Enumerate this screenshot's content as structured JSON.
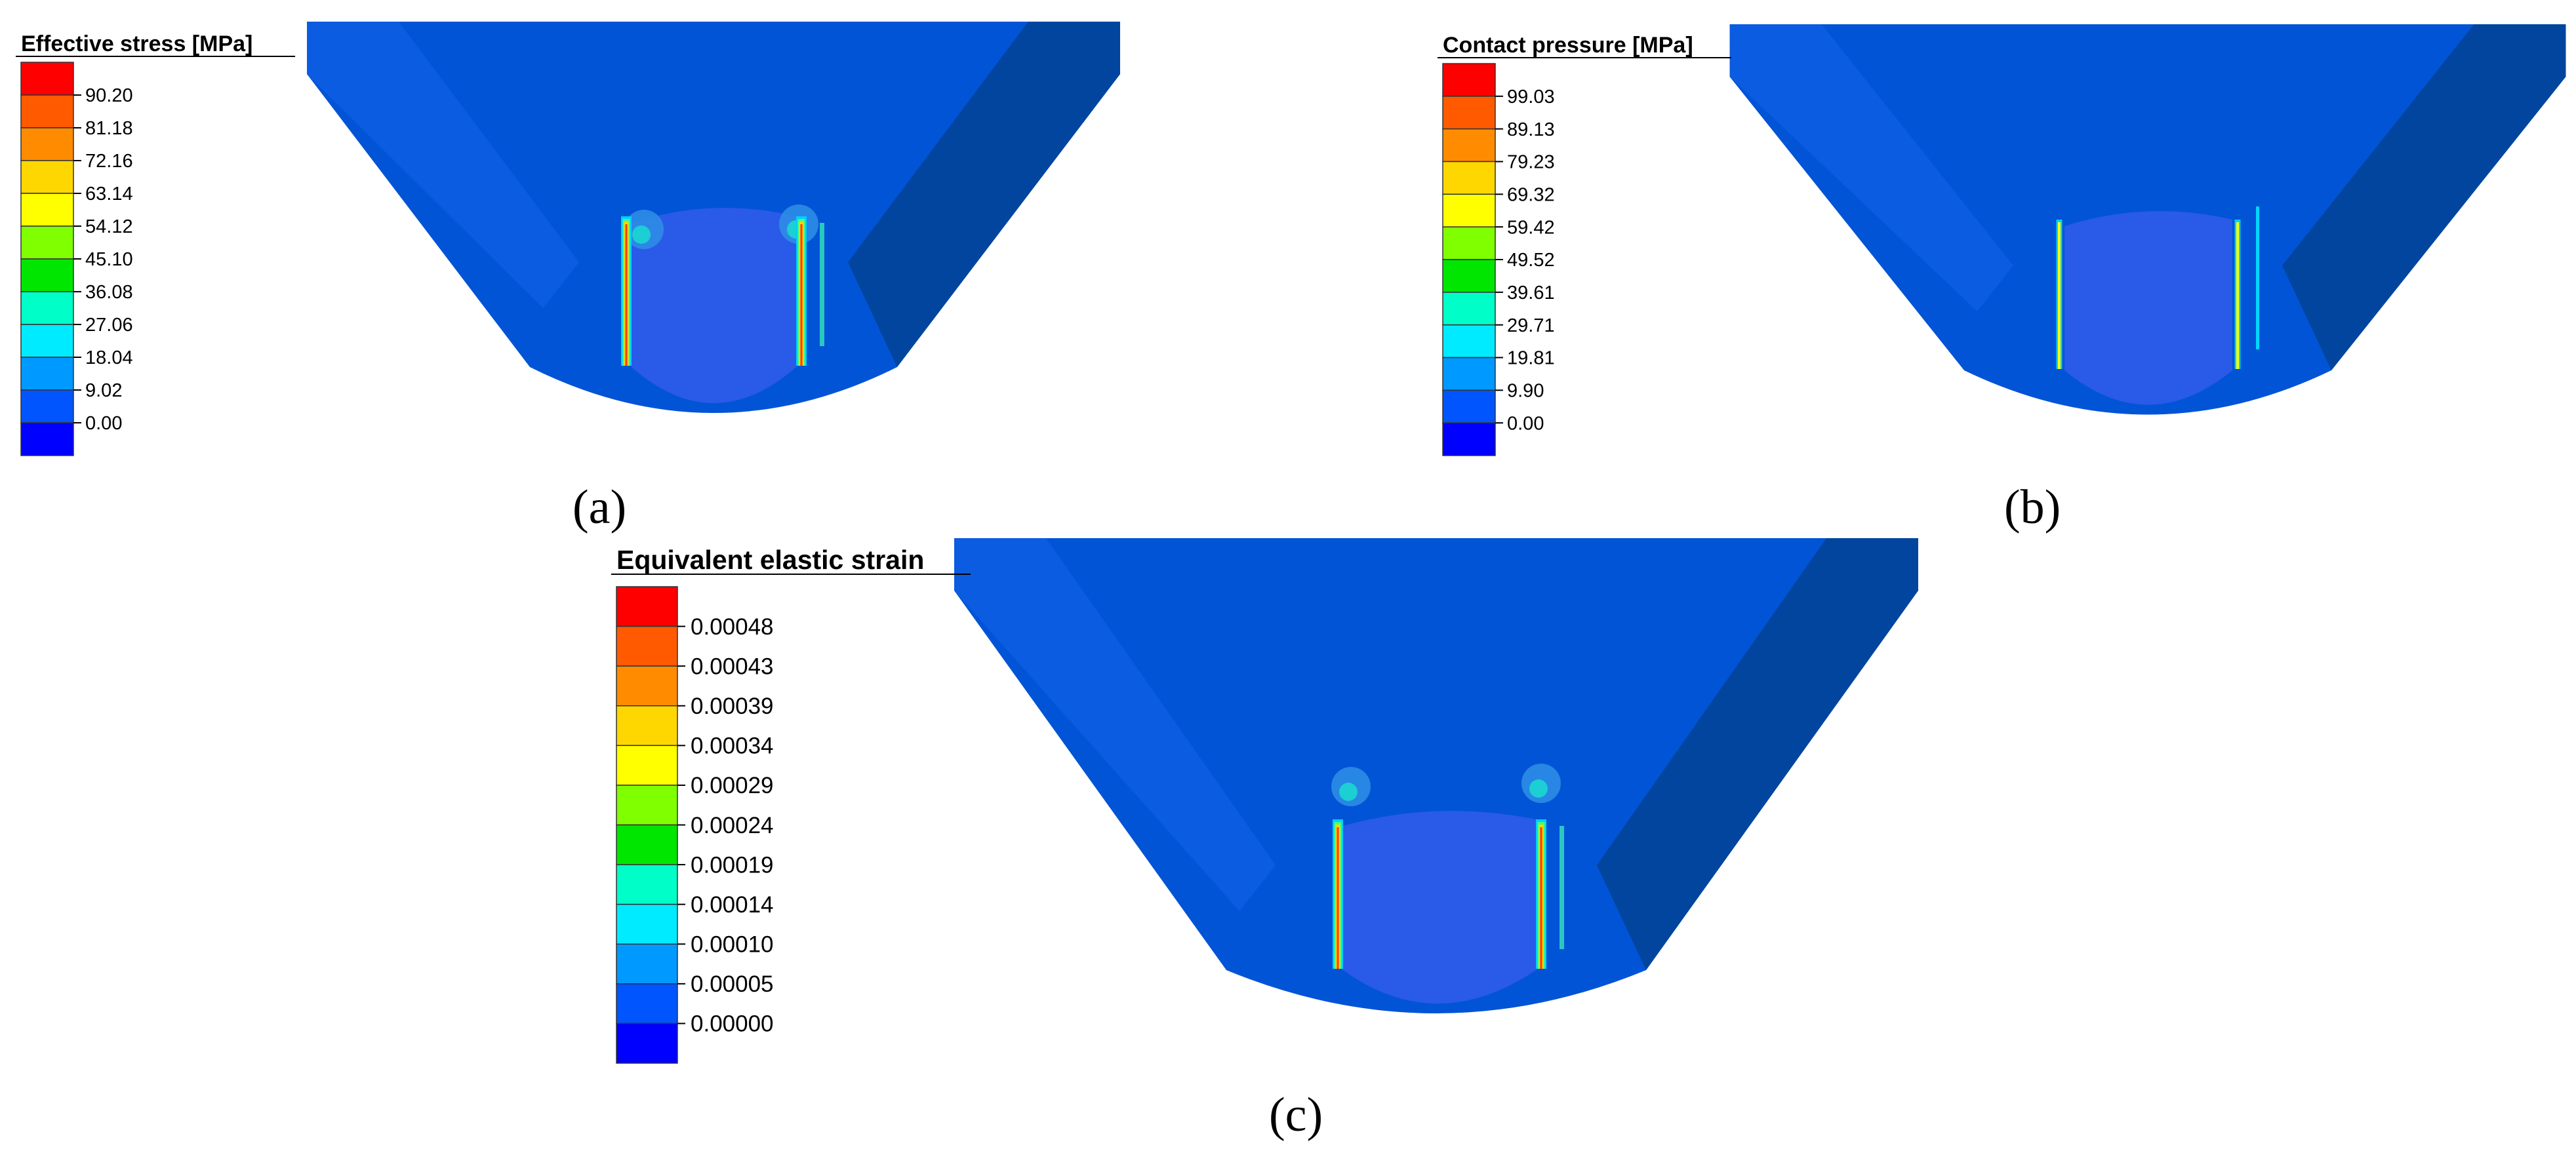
{
  "figure": {
    "panels": [
      {
        "id": "a",
        "label": "(a)",
        "legend": {
          "title": "Effective stress [MPa]",
          "ticks": [
            "90.20",
            "81.18",
            "72.16",
            "63.14",
            "54.12",
            "45.10",
            "36.08",
            "27.06",
            "18.04",
            "9.02",
            "0.00"
          ]
        }
      },
      {
        "id": "b",
        "label": "(b)",
        "legend": {
          "title": "Contact pressure [MPa]",
          "ticks": [
            "99.03",
            "89.13",
            "79.23",
            "69.32",
            "59.42",
            "49.52",
            "39.61",
            "29.71",
            "19.81",
            "9.90",
            "0.00"
          ]
        }
      },
      {
        "id": "c",
        "label": "(c)",
        "legend": {
          "title": "Equivalent elastic strain",
          "ticks": [
            "0.00048",
            "0.00043",
            "0.00039",
            "0.00034",
            "0.00029",
            "0.00024",
            "0.00019",
            "0.00014",
            "0.00010",
            "0.00005",
            "0.00000"
          ]
        }
      }
    ],
    "colormap": [
      "#ff0000",
      "#ff5a00",
      "#ff8c00",
      "#ffd700",
      "#ffff00",
      "#80ff00",
      "#00e600",
      "#00ffc8",
      "#00ebff",
      "#0099ff",
      "#0055ff",
      "#0000ff"
    ],
    "model_colors": {
      "face_front": "#0254d6",
      "face_side": "#02459f",
      "groove": "#2a5ae8"
    }
  }
}
